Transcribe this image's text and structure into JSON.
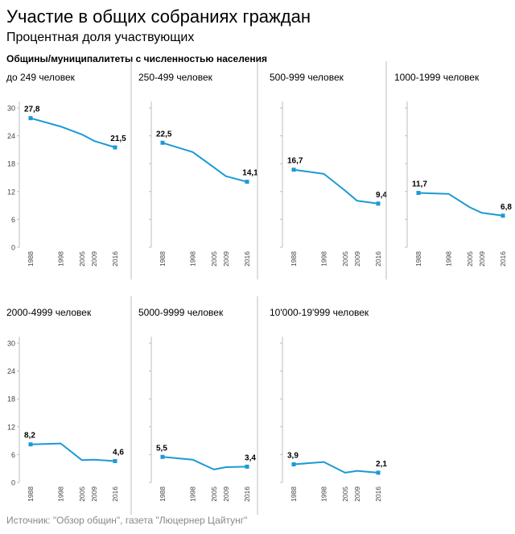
{
  "header": {
    "title": "Участие в общих собраниях граждан",
    "subtitle": "Процентная доля участвующих",
    "caption": "Общины/муниципалитеты с численностью населения"
  },
  "footer": {
    "source": "Источник: \"Обзор общин\", газета \"Люцернер Цайтунг\""
  },
  "colors": {
    "line": "#1b9ad6",
    "axis": "#bdbdbd",
    "text": "#000000"
  },
  "chart_data": {
    "type": "line",
    "title": "Участие в общих собраниях граждан",
    "ylabel": "Процентная доля участвующих",
    "xlabel": "",
    "x": [
      1988,
      1998,
      2005,
      2009,
      2016
    ],
    "x_tick_labels": [
      "1988",
      "1998",
      "2005",
      "2009",
      "2016"
    ],
    "y_ticks": [
      0,
      6,
      12,
      18,
      24,
      30
    ],
    "y_tick_labels": [
      "0",
      "6",
      "12",
      "18",
      "24",
      "30"
    ],
    "ylim": [
      0,
      30
    ],
    "grid": false,
    "series": [
      {
        "name": "до 249 человек",
        "values": [
          27.8,
          26.0,
          24.3,
          22.9,
          21.5
        ],
        "first_label": "27,8",
        "last_label": "21,5"
      },
      {
        "name": "250-499 человек",
        "values": [
          22.5,
          20.5,
          17.2,
          15.3,
          14.1
        ],
        "first_label": "22,5",
        "last_label": "14,1"
      },
      {
        "name": "500-999 человек",
        "values": [
          16.7,
          15.8,
          12.2,
          10.0,
          9.4
        ],
        "first_label": "16,7",
        "last_label": "9,4"
      },
      {
        "name": "1000-1999 человек",
        "values": [
          11.7,
          11.5,
          8.6,
          7.4,
          6.8
        ],
        "first_label": "11,7",
        "last_label": "6,8"
      },
      {
        "name": "2000-4999 человек",
        "values": [
          8.2,
          8.4,
          4.8,
          4.9,
          4.6
        ],
        "first_label": "8,2",
        "last_label": "4,6"
      },
      {
        "name": "5000-9999 человек",
        "values": [
          5.5,
          4.9,
          2.8,
          3.3,
          3.4
        ],
        "first_label": "5,5",
        "last_label": "3,4"
      },
      {
        "name": "10'000-19'999 человек",
        "values": [
          3.9,
          4.4,
          2.1,
          2.5,
          2.1
        ],
        "first_label": "3,9",
        "last_label": "2,1"
      }
    ]
  }
}
